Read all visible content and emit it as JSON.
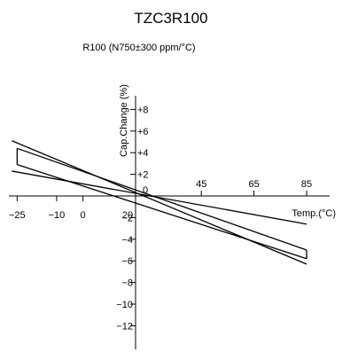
{
  "chart_data": {
    "type": "line",
    "title": "TZC3R100",
    "subtitle": "R100 (N750±300 ppm/°C)",
    "xlabel": "Temp.(°C)",
    "ylabel": "Cap.Change (%)",
    "xlim": [
      -30,
      94
    ],
    "ylim": [
      -13.5,
      10.5
    ],
    "origin_x": 20,
    "x_ticks_above": [
      {
        "value": 45,
        "label": "45"
      },
      {
        "value": 65,
        "label": "65"
      },
      {
        "value": 85,
        "label": "85"
      }
    ],
    "x_ticks_below": [
      {
        "value": -25,
        "label": "−25"
      },
      {
        "value": -10,
        "label": "−10"
      },
      {
        "value": 0,
        "label": "0"
      },
      {
        "value": 20,
        "label": "20"
      }
    ],
    "y_ticks": [
      {
        "value": 8,
        "label": "+8"
      },
      {
        "value": 6,
        "label": "+6"
      },
      {
        "value": 4,
        "label": "+4"
      },
      {
        "value": 2,
        "label": "+2"
      },
      {
        "value": 0,
        "label": "0"
      },
      {
        "value": -2,
        "label": "−2"
      },
      {
        "value": -4,
        "label": "−4"
      },
      {
        "value": -6,
        "label": "−6"
      },
      {
        "value": -8,
        "label": "−8"
      },
      {
        "value": -10,
        "label": "−10"
      },
      {
        "value": -12,
        "label": "−12"
      }
    ],
    "series": [
      {
        "x": [
          -27,
          85
        ],
        "y": [
          5.1,
          -6.3
        ]
      },
      {
        "x": [
          -25,
          85
        ],
        "y": [
          4.4,
          -5.0
        ]
      },
      {
        "x": [
          -25,
          85
        ],
        "y": [
          2.9,
          -5.8
        ]
      },
      {
        "x": [
          -27,
          85
        ],
        "y": [
          2.3,
          -2.6
        ]
      }
    ],
    "envelope_end_ticks": [
      {
        "x": -25,
        "y": [
          2.9,
          4.4
        ]
      },
      {
        "x": 85,
        "y": [
          -5.8,
          -5.0
        ]
      }
    ]
  }
}
